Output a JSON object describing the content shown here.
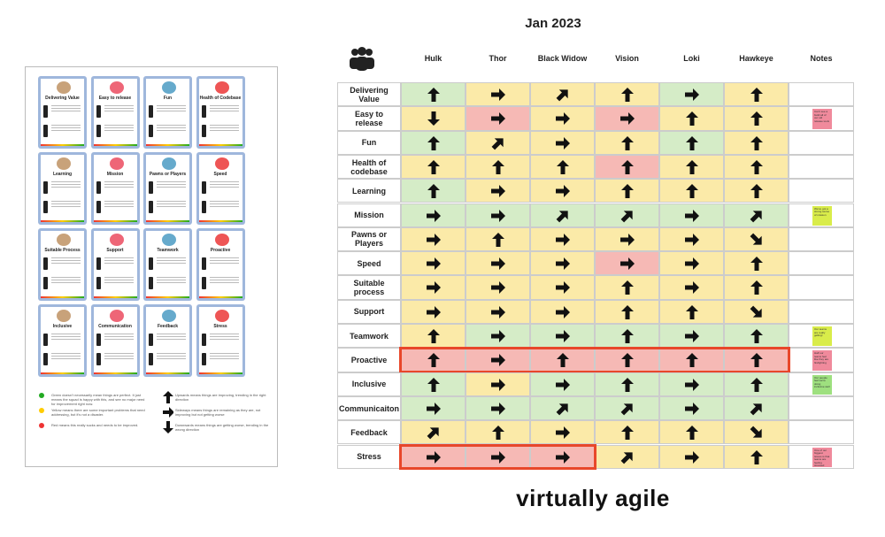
{
  "title": "Jan 2023",
  "document": {
    "cards": [
      "Delivering Value",
      "Easy to release",
      "Fun",
      "Health of Codebase",
      "Learning",
      "Mission",
      "Pawns or Players",
      "Speed",
      "Suitable Process",
      "Support",
      "Teamwork",
      "Proactive",
      "Inclusive",
      "Communication",
      "Feedback",
      "Stress"
    ],
    "legend": [
      "Green doesn't necessarily mean things are perfect. It just means the squad is happy with this, and see no major need for improvement right now.",
      "Yellow means there are some important problems that need addressing, but it's not a disaster.",
      "Red means this really sucks and needs to be improved.",
      "Upwards means things are improving, trending in the right direction",
      "Sideways means things are remaining as they are, not improving but not getting worse",
      "Downwards means things are getting worse, trending in the wrong direction"
    ]
  },
  "table": {
    "columns": [
      "Hulk",
      "Thor",
      "Black Widow",
      "Vision",
      "Loki",
      "Hawkeye"
    ],
    "notes_header": "Notes",
    "rows": [
      {
        "label": "Delivering Value",
        "colors": [
          "green",
          "yellow",
          "yellow",
          "yellow",
          "green",
          "yellow"
        ],
        "arrows": [
          "up",
          "right",
          "up-right",
          "up",
          "right",
          "up"
        ]
      },
      {
        "label": "Easy to release",
        "colors": [
          "yellow",
          "red",
          "yellow",
          "red",
          "yellow",
          "yellow"
        ],
        "arrows": [
          "down",
          "right",
          "right",
          "right",
          "up",
          "up"
        ],
        "note": {
          "text": "Can't see a build all of our old release tools",
          "color": "red"
        }
      },
      {
        "label": "Fun",
        "colors": [
          "green",
          "yellow",
          "yellow",
          "yellow",
          "green",
          "yellow"
        ],
        "arrows": [
          "up",
          "up-right",
          "right",
          "up",
          "up",
          "up"
        ]
      },
      {
        "label": "Health of codebase",
        "colors": [
          "yellow",
          "yellow",
          "yellow",
          "red",
          "yellow",
          "yellow"
        ],
        "arrows": [
          "up",
          "up",
          "up",
          "up",
          "up",
          "up"
        ]
      },
      {
        "label": "Learning",
        "colors": [
          "green",
          "yellow",
          "yellow",
          "yellow",
          "yellow",
          "yellow"
        ],
        "arrows": [
          "up",
          "right",
          "right",
          "up",
          "up",
          "up"
        ]
      },
      {
        "label": "Mission",
        "colors": [
          "green",
          "green",
          "green",
          "green",
          "green",
          "green"
        ],
        "arrows": [
          "right",
          "right",
          "up-right",
          "up-right",
          "right",
          "up-right"
        ],
        "note": {
          "text": "We've got a strong sense of mission",
          "color": "lime"
        }
      },
      {
        "label": "Pawns or Players",
        "colors": [
          "yellow",
          "yellow",
          "yellow",
          "yellow",
          "yellow",
          "yellow"
        ],
        "arrows": [
          "right",
          "up",
          "right",
          "right",
          "right",
          "down-right"
        ]
      },
      {
        "label": "Speed",
        "colors": [
          "yellow",
          "yellow",
          "yellow",
          "red",
          "yellow",
          "yellow"
        ],
        "arrows": [
          "right",
          "right",
          "right",
          "right",
          "right",
          "up"
        ]
      },
      {
        "label": "Suitable process",
        "colors": [
          "yellow",
          "yellow",
          "yellow",
          "yellow",
          "yellow",
          "yellow"
        ],
        "arrows": [
          "right",
          "right",
          "right",
          "up",
          "right",
          "up"
        ]
      },
      {
        "label": "Support",
        "colors": [
          "yellow",
          "yellow",
          "yellow",
          "yellow",
          "yellow",
          "yellow"
        ],
        "arrows": [
          "right",
          "right",
          "right",
          "up",
          "up",
          "down-right"
        ]
      },
      {
        "label": "Teamwork",
        "colors": [
          "yellow",
          "green",
          "green",
          "green",
          "green",
          "green"
        ],
        "arrows": [
          "up",
          "right",
          "right",
          "up",
          "right",
          "up"
        ],
        "note": {
          "text": "Our teams are really gelling!",
          "color": "lime"
        }
      },
      {
        "label": "Proactive",
        "colors": [
          "red",
          "red",
          "red",
          "red",
          "red",
          "red"
        ],
        "arrows": [
          "up",
          "right",
          "up",
          "up",
          "up",
          "up"
        ],
        "outline": [
          0,
          5
        ],
        "note": {
          "text": "Half our teams feel like they are firefighting",
          "color": "red"
        }
      },
      {
        "label": "Inclusive",
        "colors": [
          "green",
          "yellow",
          "green",
          "green",
          "green",
          "green"
        ],
        "arrows": [
          "up",
          "right",
          "right",
          "up",
          "right",
          "up"
        ],
        "note": {
          "text": "Our people feel we're doing inclusive well",
          "color": "green"
        }
      },
      {
        "label": "Communicaiton",
        "colors": [
          "green",
          "green",
          "green",
          "green",
          "green",
          "green"
        ],
        "arrows": [
          "right",
          "right",
          "up-right",
          "up-right",
          "right",
          "up-right"
        ]
      },
      {
        "label": "Feedback",
        "colors": [
          "yellow",
          "yellow",
          "yellow",
          "yellow",
          "yellow",
          "yellow"
        ],
        "arrows": [
          "up-right",
          "up",
          "right",
          "up",
          "up",
          "down-right"
        ]
      },
      {
        "label": "Stress",
        "colors": [
          "red",
          "red",
          "red",
          "yellow",
          "yellow",
          "yellow"
        ],
        "arrows": [
          "right",
          "right",
          "right",
          "up-right",
          "right",
          "up"
        ],
        "outline": [
          0,
          2
        ],
        "note": {
          "text": "One of our biggest issues is that teams are feeling stressed",
          "color": "red"
        }
      }
    ]
  },
  "brand": "virtually agile"
}
